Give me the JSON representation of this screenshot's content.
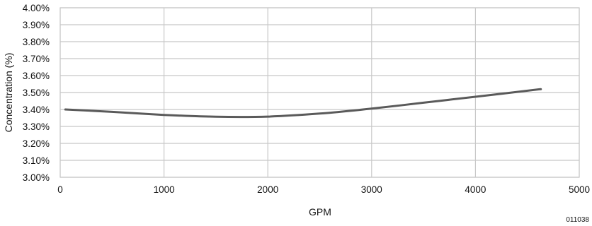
{
  "chart_data": {
    "type": "line",
    "title": "",
    "xlabel": "GPM",
    "ylabel": "Concentration (%)",
    "xlim": [
      0,
      5000
    ],
    "ylim": [
      3.0,
      4.0
    ],
    "x_ticks": [
      "0",
      "1000",
      "2000",
      "3000",
      "4000",
      "5000"
    ],
    "y_ticks": [
      "3.00%",
      "3.10%",
      "3.20%",
      "3.30%",
      "3.40%",
      "3.50%",
      "3.60%",
      "3.70%",
      "3.80%",
      "3.90%",
      "4.00%"
    ],
    "grid": true,
    "series": [
      {
        "color": "#5a5a5a",
        "x": [
          50,
          500,
          1000,
          1500,
          2000,
          2500,
          3000,
          3500,
          4000,
          4630
        ],
        "y": [
          3.4,
          3.386,
          3.368,
          3.357,
          3.358,
          3.376,
          3.405,
          3.44,
          3.475,
          3.52
        ]
      }
    ]
  },
  "figure_ref": "011038"
}
